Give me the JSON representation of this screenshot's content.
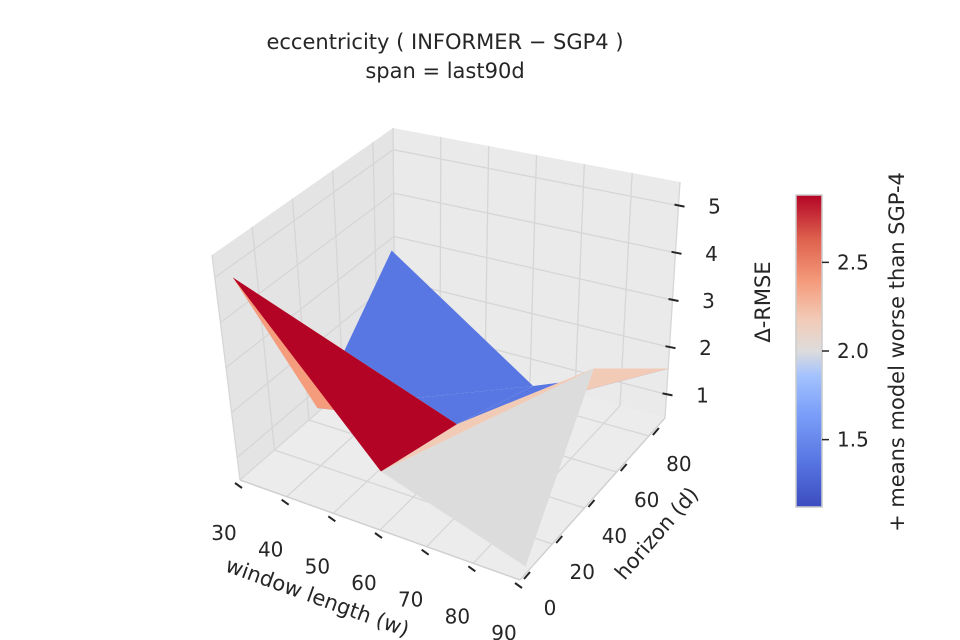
{
  "chart_data": {
    "type": "surface3d",
    "title": "eccentricity  ( INFORMER − SGP4 )",
    "subtitle": "span = last90d",
    "xlabel": "window length (w)",
    "ylabel": "horizon (d)",
    "zlabel": "Δ-RMSE",
    "x_ticks": [
      "30",
      "40",
      "50",
      "60",
      "70",
      "80",
      "90"
    ],
    "y_ticks": [
      "0",
      "20",
      "40",
      "60",
      "80"
    ],
    "z_ticks": [
      "1",
      "2",
      "3",
      "4",
      "5"
    ],
    "xlim": [
      30,
      90
    ],
    "ylim": [
      0,
      90
    ],
    "zlim": [
      0.5,
      5.5
    ],
    "colorbar": {
      "label": "+ means model worse than SGP-4",
      "ticks": [
        "1.5",
        "2.0",
        "2.5"
      ],
      "range": [
        1.12,
        2.88
      ],
      "colormap": "coolwarm"
    },
    "surface_grid": {
      "x": [
        30,
        60,
        90
      ],
      "y": [
        0,
        45,
        90
      ],
      "z": [
        [
          5.0,
          1.8,
          0.8
        ],
        [
          0.6,
          1.2,
          3.4
        ],
        [
          2.6,
          0.4,
          1.6
        ]
      ]
    },
    "grid": true
  }
}
